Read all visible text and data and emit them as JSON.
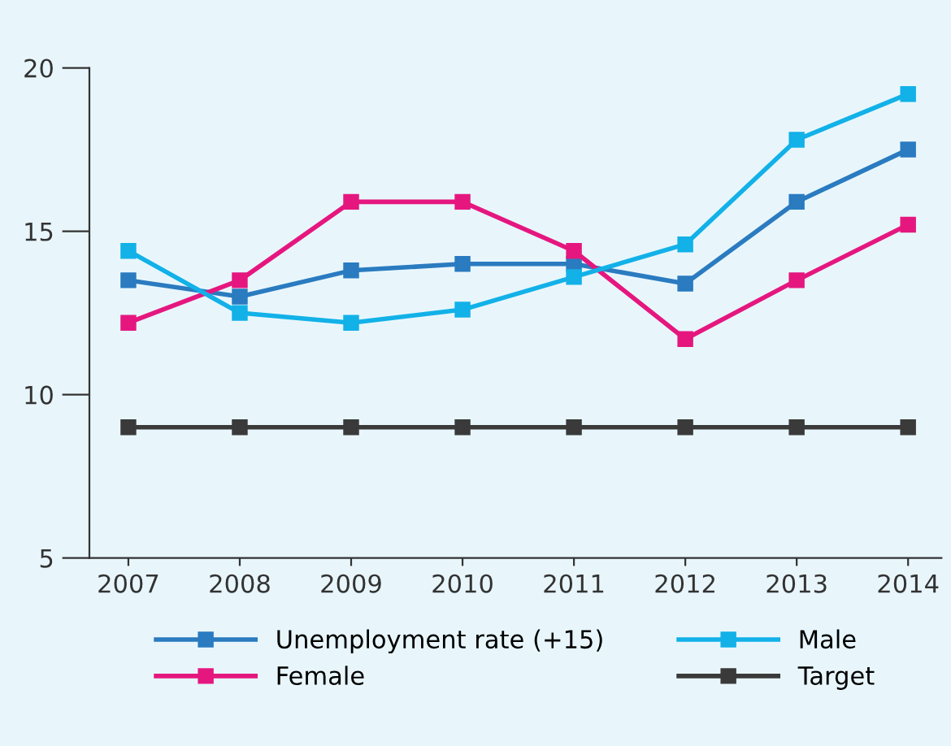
{
  "chart_data": {
    "type": "line",
    "categories": [
      "2007",
      "2008",
      "2009",
      "2010",
      "2011",
      "2012",
      "2013",
      "2014"
    ],
    "series": [
      {
        "name": "Unemployment rate (+15)",
        "color": "#2a7bc0",
        "values": [
          13.5,
          13.0,
          13.8,
          14.0,
          14.0,
          13.4,
          15.9,
          17.5
        ]
      },
      {
        "name": "Female",
        "color": "#e5177f",
        "values": [
          12.2,
          13.5,
          15.9,
          15.9,
          14.4,
          11.7,
          13.5,
          15.2
        ]
      },
      {
        "name": "Male",
        "color": "#12b1e8",
        "values": [
          14.4,
          12.5,
          12.2,
          12.6,
          13.6,
          14.6,
          17.8,
          19.2
        ]
      },
      {
        "name": "Target",
        "color": "#3a3a3a",
        "values": [
          9,
          9,
          9,
          9,
          9,
          9,
          9,
          9
        ]
      }
    ],
    "ylim": [
      5,
      20
    ],
    "yticks": [
      5,
      10,
      15,
      20
    ],
    "grid": false,
    "legend": "bottom",
    "marker": "square",
    "line_style": "solid"
  }
}
